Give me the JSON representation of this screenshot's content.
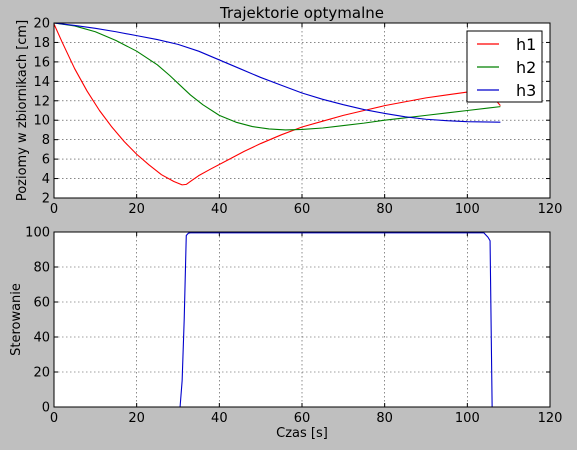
{
  "chart_data": [
    {
      "type": "line",
      "title": "Trajektorie optymalne",
      "xlabel": "",
      "ylabel": "Poziomy w zbiornikach [cm]",
      "xlim": [
        0,
        120
      ],
      "ylim": [
        2,
        20
      ],
      "xticks": [
        0,
        20,
        40,
        60,
        80,
        100,
        120
      ],
      "yticks": [
        2,
        4,
        6,
        8,
        10,
        12,
        14,
        16,
        18,
        20
      ],
      "grid": true,
      "legend": "top-right",
      "series": [
        {
          "name": "h1",
          "color": "#ff0000",
          "x": [
            0,
            2,
            5,
            8,
            11,
            14,
            17,
            20,
            23,
            26,
            29,
            31,
            32,
            33,
            35,
            38,
            42,
            46,
            50,
            55,
            60,
            65,
            70,
            75,
            80,
            85,
            90,
            95,
            100,
            104,
            106,
            108
          ],
          "y": [
            19.9,
            18.0,
            15.3,
            13.0,
            11.0,
            9.3,
            7.8,
            6.5,
            5.4,
            4.4,
            3.7,
            3.35,
            3.4,
            3.7,
            4.3,
            5.0,
            5.9,
            6.8,
            7.6,
            8.5,
            9.3,
            9.9,
            10.5,
            11.0,
            11.5,
            11.9,
            12.3,
            12.6,
            12.9,
            13.0,
            12.5,
            11.5
          ]
        },
        {
          "name": "h2",
          "color": "#008000",
          "x": [
            0,
            5,
            10,
            15,
            20,
            25,
            28,
            31,
            33,
            36,
            40,
            44,
            48,
            52,
            56,
            60,
            65,
            70,
            75,
            80,
            85,
            90,
            95,
            100,
            105,
            108
          ],
          "y": [
            20.0,
            19.7,
            19.1,
            18.2,
            17.1,
            15.7,
            14.6,
            13.4,
            12.6,
            11.6,
            10.5,
            9.8,
            9.35,
            9.1,
            9.0,
            9.05,
            9.2,
            9.45,
            9.7,
            10.0,
            10.25,
            10.5,
            10.75,
            11.0,
            11.25,
            11.4
          ]
        },
        {
          "name": "h3",
          "color": "#0000cc",
          "x": [
            0,
            5,
            10,
            15,
            20,
            25,
            30,
            35,
            40,
            45,
            50,
            55,
            60,
            65,
            70,
            75,
            80,
            85,
            90,
            95,
            100,
            104,
            108
          ],
          "y": [
            20.0,
            19.75,
            19.45,
            19.1,
            18.7,
            18.3,
            17.8,
            17.1,
            16.2,
            15.3,
            14.4,
            13.6,
            12.8,
            12.15,
            11.6,
            11.1,
            10.7,
            10.35,
            10.1,
            9.95,
            9.85,
            9.82,
            9.8
          ]
        }
      ]
    },
    {
      "type": "line",
      "title": "",
      "xlabel": "Czas [s]",
      "ylabel": "Sterowanie",
      "xlim": [
        0,
        120
      ],
      "ylim": [
        0,
        100
      ],
      "xticks": [
        0,
        20,
        40,
        60,
        80,
        100,
        120
      ],
      "yticks": [
        0,
        20,
        40,
        60,
        80,
        100
      ],
      "grid": true,
      "series": [
        {
          "name": "",
          "color": "#0000cc",
          "x": [
            0,
            30.5,
            31,
            31.5,
            32,
            32.5,
            33,
            35,
            60,
            90,
            104,
            105,
            105.5,
            106,
            108
          ],
          "y": [
            0,
            0,
            15,
            50,
            98,
            99.3,
            99.5,
            99.5,
            99.5,
            99.5,
            99.5,
            97,
            95,
            0,
            0
          ]
        }
      ]
    }
  ]
}
